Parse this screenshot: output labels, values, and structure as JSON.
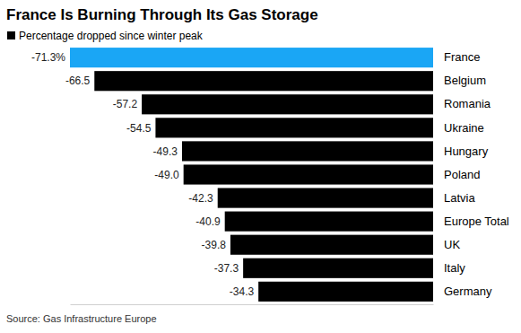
{
  "chart_data": {
    "type": "bar",
    "orientation": "horizontal",
    "title": "France Is Burning Through Its Gas Storage",
    "subtitle": "Percentage dropped since winter peak",
    "source": "Source: Gas Infrastructure Europe",
    "categories": [
      "France",
      "Belgium",
      "Romania",
      "Ukraine",
      "Hungary",
      "Poland",
      "Latvia",
      "Europe Total",
      "UK",
      "Italy",
      "Germany"
    ],
    "values": [
      -71.3,
      -66.5,
      -57.2,
      -54.5,
      -49.3,
      -49.0,
      -42.3,
      -40.9,
      -39.8,
      -37.3,
      -34.3
    ],
    "value_labels": [
      "-71.3%",
      "-66.5",
      "-57.2",
      "-54.5",
      "-49.3",
      "-49.0",
      "-42.3",
      "-40.9",
      "-39.8",
      "-37.3",
      "-34.3"
    ],
    "colors": [
      "#1aa6f5",
      "#000000",
      "#000000",
      "#000000",
      "#000000",
      "#000000",
      "#000000",
      "#000000",
      "#000000",
      "#000000",
      "#000000"
    ],
    "xlim": [
      -71.3,
      0
    ],
    "data_labels": true,
    "tick_labels": "y",
    "grid": false
  }
}
